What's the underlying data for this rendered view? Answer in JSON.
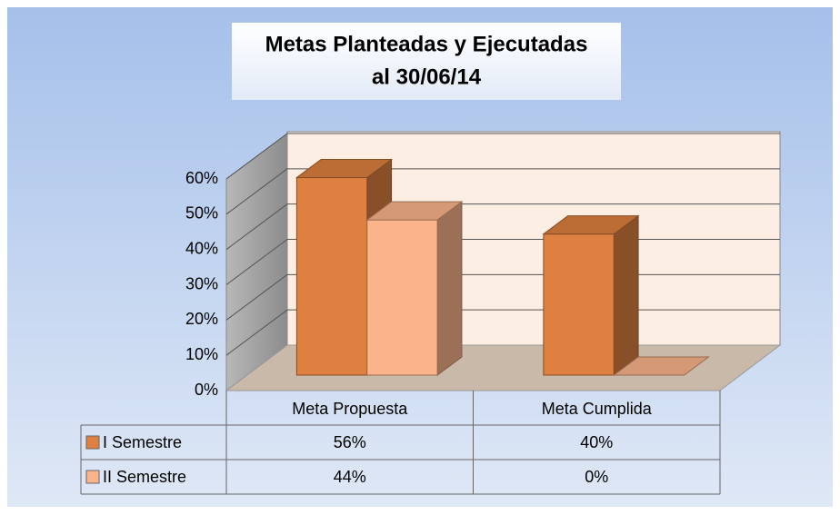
{
  "chart_data": {
    "type": "bar3d",
    "title": [
      "Metas Planteadas y Ejecutadas",
      "al 30/06/14"
    ],
    "categories": [
      "Meta Propuesta",
      "Meta Cumplida"
    ],
    "series": [
      {
        "name": "I Semestre",
        "color": "#dd8040",
        "values": [
          56,
          40
        ],
        "value_labels": [
          "56%",
          "40%"
        ]
      },
      {
        "name": "II Semestre",
        "color": "#fbb48a",
        "values": [
          44,
          0
        ],
        "value_labels": [
          "44%",
          "0%"
        ]
      }
    ],
    "ylim": [
      0,
      60
    ],
    "yticks": [
      {
        "value": 0,
        "label": "0%"
      },
      {
        "value": 10,
        "label": "10%"
      },
      {
        "value": 20,
        "label": "20%"
      },
      {
        "value": 30,
        "label": "30%"
      },
      {
        "value": 40,
        "label": "40%"
      },
      {
        "value": 50,
        "label": "50%"
      },
      {
        "value": 60,
        "label": "60%"
      }
    ],
    "grid": true,
    "data_table": true
  }
}
